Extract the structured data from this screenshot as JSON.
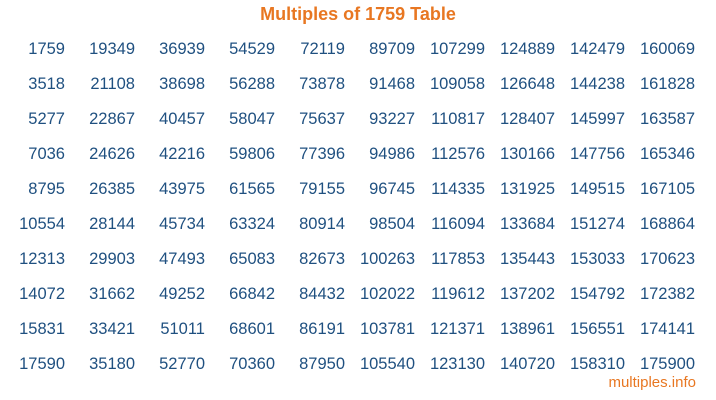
{
  "title": "Multiples of 1759 Table",
  "footer": "multiples.info",
  "colors": {
    "title": "#e87722",
    "numbers": "#1f5080",
    "footer": "#e87722"
  },
  "table": [
    [
      "1759",
      "19349",
      "36939",
      "54529",
      "72119",
      "89709",
      "107299",
      "124889",
      "142479",
      "160069"
    ],
    [
      "3518",
      "21108",
      "38698",
      "56288",
      "73878",
      "91468",
      "109058",
      "126648",
      "144238",
      "161828"
    ],
    [
      "5277",
      "22867",
      "40457",
      "58047",
      "75637",
      "93227",
      "110817",
      "128407",
      "145997",
      "163587"
    ],
    [
      "7036",
      "24626",
      "42216",
      "59806",
      "77396",
      "94986",
      "112576",
      "130166",
      "147756",
      "165346"
    ],
    [
      "8795",
      "26385",
      "43975",
      "61565",
      "79155",
      "96745",
      "114335",
      "131925",
      "149515",
      "167105"
    ],
    [
      "10554",
      "28144",
      "45734",
      "63324",
      "80914",
      "98504",
      "116094",
      "133684",
      "151274",
      "168864"
    ],
    [
      "12313",
      "29903",
      "47493",
      "65083",
      "82673",
      "100263",
      "117853",
      "135443",
      "153033",
      "170623"
    ],
    [
      "14072",
      "31662",
      "49252",
      "66842",
      "84432",
      "102022",
      "119612",
      "137202",
      "154792",
      "172382"
    ],
    [
      "15831",
      "33421",
      "51011",
      "68601",
      "86191",
      "103781",
      "121371",
      "138961",
      "156551",
      "174141"
    ],
    [
      "17590",
      "35180",
      "52770",
      "70360",
      "87950",
      "105540",
      "123130",
      "140720",
      "158310",
      "175900"
    ]
  ]
}
